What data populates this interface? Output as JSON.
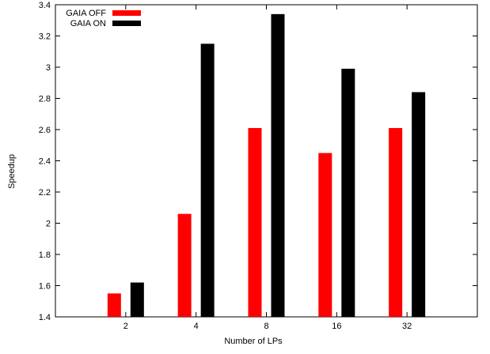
{
  "chart_data": {
    "type": "bar",
    "title": "",
    "xlabel": "Number of LPs",
    "ylabel": "Speedup",
    "categories": [
      "2",
      "4",
      "8",
      "16",
      "32"
    ],
    "series": [
      {
        "name": "GAIA OFF",
        "color": "#ff0000",
        "values": [
          1.55,
          2.06,
          2.61,
          2.45,
          2.61
        ]
      },
      {
        "name": "GAIA ON",
        "color": "#000000",
        "values": [
          1.62,
          3.15,
          3.34,
          2.99,
          2.84
        ]
      }
    ],
    "ylim": [
      1.4,
      3.4
    ],
    "yticks": [
      "1.4",
      "1.6",
      "1.8",
      "2",
      "2.2",
      "2.4",
      "2.6",
      "2.8",
      "3",
      "3.2",
      "3.4"
    ],
    "grid": false,
    "legend_position": "top-left"
  }
}
